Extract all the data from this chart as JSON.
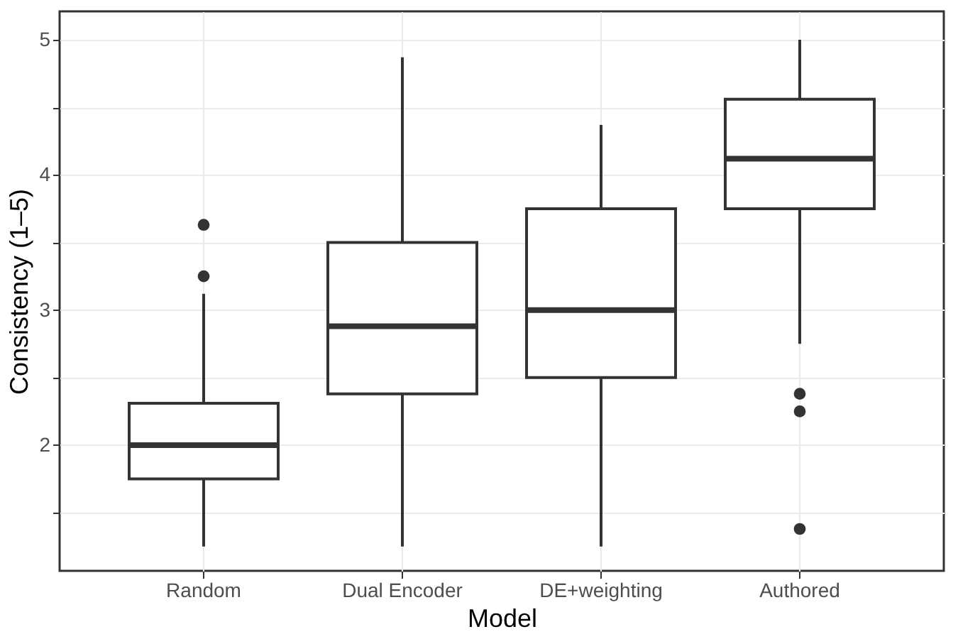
{
  "chart_data": {
    "type": "box",
    "xlabel": "Model",
    "ylabel": "Consistency (1–5)",
    "categories": [
      "Random",
      "Dual Encoder",
      "DE+weighting",
      "Authored"
    ],
    "boxes": [
      {
        "low": 1.25,
        "q1": 1.75,
        "median": 2.0,
        "q3": 2.31,
        "high": 3.12,
        "outliers": [
          3.63,
          3.25
        ]
      },
      {
        "low": 1.25,
        "q1": 2.38,
        "median": 2.88,
        "q3": 3.5,
        "high": 4.87
      },
      {
        "low": 1.25,
        "q1": 2.5,
        "median": 3.0,
        "q3": 3.75,
        "high": 4.37
      },
      {
        "low": 2.75,
        "q1": 3.75,
        "median": 4.12,
        "q3": 4.56,
        "high": 5.0,
        "outliers": [
          2.38,
          2.25,
          1.38
        ]
      }
    ],
    "color": "#333333",
    "ylim": [
      1.07,
      5.21
    ],
    "yticks": [
      {
        "value": 1.5,
        "label": null
      },
      2,
      {
        "value": 2.5,
        "label": null
      },
      3,
      {
        "value": 3.5,
        "label": null
      },
      4,
      {
        "value": 4.5,
        "label": null
      },
      5
    ],
    "grid": true
  }
}
